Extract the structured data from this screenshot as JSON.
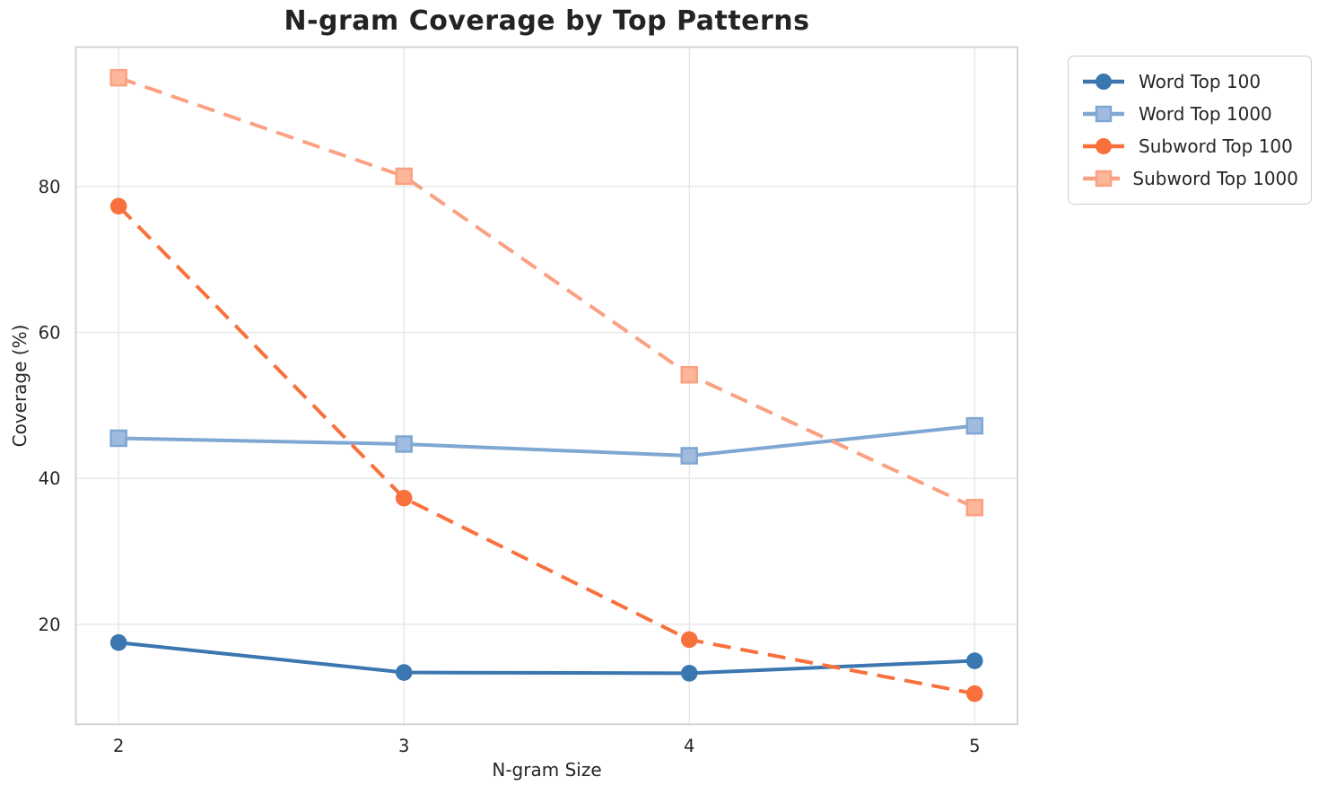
{
  "chart_data": {
    "type": "line",
    "title": "N-gram Coverage by Top Patterns",
    "xlabel": "N-gram Size",
    "ylabel": "Coverage (%)",
    "x": [
      2,
      3,
      4,
      5
    ],
    "xticks": [
      "2",
      "3",
      "4",
      "5"
    ],
    "yticks": [
      "20",
      "40",
      "60",
      "80"
    ],
    "xlim": [
      1.85,
      5.15
    ],
    "ylim": [
      6.3,
      99.1
    ],
    "grid": true,
    "legend_position": "outside-upper-right",
    "series": [
      {
        "name": "Word Top 100",
        "values": [
          17.5,
          13.4,
          13.3,
          15.0
        ],
        "color": "#3a76af",
        "marker": "circle",
        "marker_fill": "#3a76af",
        "linestyle": "solid"
      },
      {
        "name": "Word Top 1000",
        "values": [
          45.5,
          44.7,
          43.1,
          47.2
        ],
        "color": "#7ea7d2",
        "marker": "square",
        "marker_fill": "#9fbcdf",
        "linestyle": "solid"
      },
      {
        "name": "Subword Top 100",
        "values": [
          77.3,
          37.3,
          17.9,
          10.5
        ],
        "color": "#f8713d",
        "marker": "circle",
        "marker_fill": "#f8713d",
        "linestyle": "dashed"
      },
      {
        "name": "Subword Top 1000",
        "values": [
          94.9,
          81.4,
          54.2,
          36.0
        ],
        "color": "#fba183",
        "marker": "square",
        "marker_fill": "#fcb698",
        "linestyle": "dashed"
      }
    ]
  }
}
